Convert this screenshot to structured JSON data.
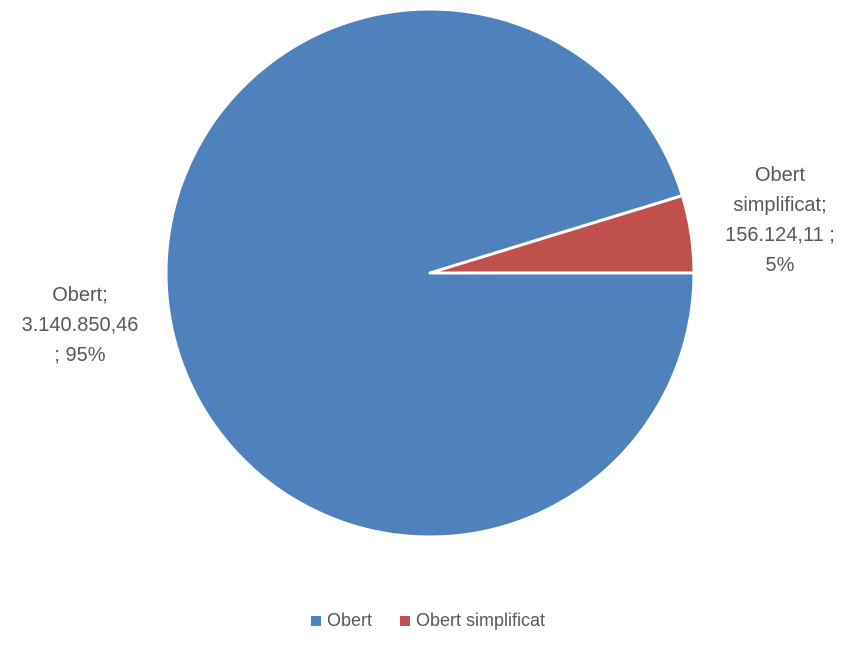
{
  "chart_data": {
    "type": "pie",
    "title": "",
    "slices": [
      {
        "name": "Obert",
        "value": 3140850.46,
        "percent": 95,
        "color": "#4f81bd",
        "label_lines": [
          "Obert;",
          "3.140.850,46",
          "; 95%"
        ]
      },
      {
        "name": "Obert simplificat",
        "value": 156124.11,
        "percent": 5,
        "color": "#c0504d",
        "label_lines": [
          "Obert",
          "simplificat;",
          "156.124,11 ;",
          "5%"
        ]
      }
    ],
    "legend": {
      "position": "bottom",
      "entries": [
        "Obert",
        "Obert simplificat"
      ]
    }
  }
}
